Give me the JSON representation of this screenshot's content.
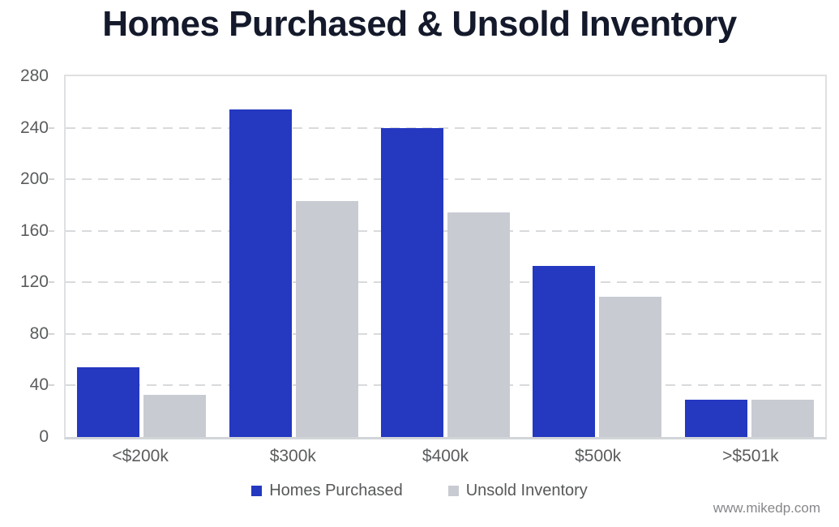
{
  "title": "Homes Purchased & Unsold Inventory",
  "footer": "www.mikedp.com",
  "colors": {
    "homes_purchased": "#2438c0",
    "unsold_inventory": "#c8cbd2",
    "title_text": "#141a2b",
    "axis_text": "#5a5c5e",
    "gridline": "#d9dadc"
  },
  "chart_data": {
    "type": "bar",
    "categories": [
      "<$200k",
      "$300k",
      "$400k",
      "$500k",
      ">$501k"
    ],
    "series": [
      {
        "name": "Homes Purchased",
        "color": "#2438c0",
        "values": [
          54,
          254,
          240,
          133,
          29
        ]
      },
      {
        "name": "Unsold Inventory",
        "color": "#c8cbd2",
        "values": [
          33,
          183,
          174,
          109,
          29
        ]
      }
    ],
    "title": "Homes Purchased & Unsold Inventory",
    "xlabel": "",
    "ylabel": "",
    "ylim": [
      0,
      280
    ],
    "yticks": [
      0,
      40,
      80,
      120,
      160,
      200,
      240,
      280
    ],
    "grid": "horizontal-dashed",
    "legend_position": "bottom"
  }
}
